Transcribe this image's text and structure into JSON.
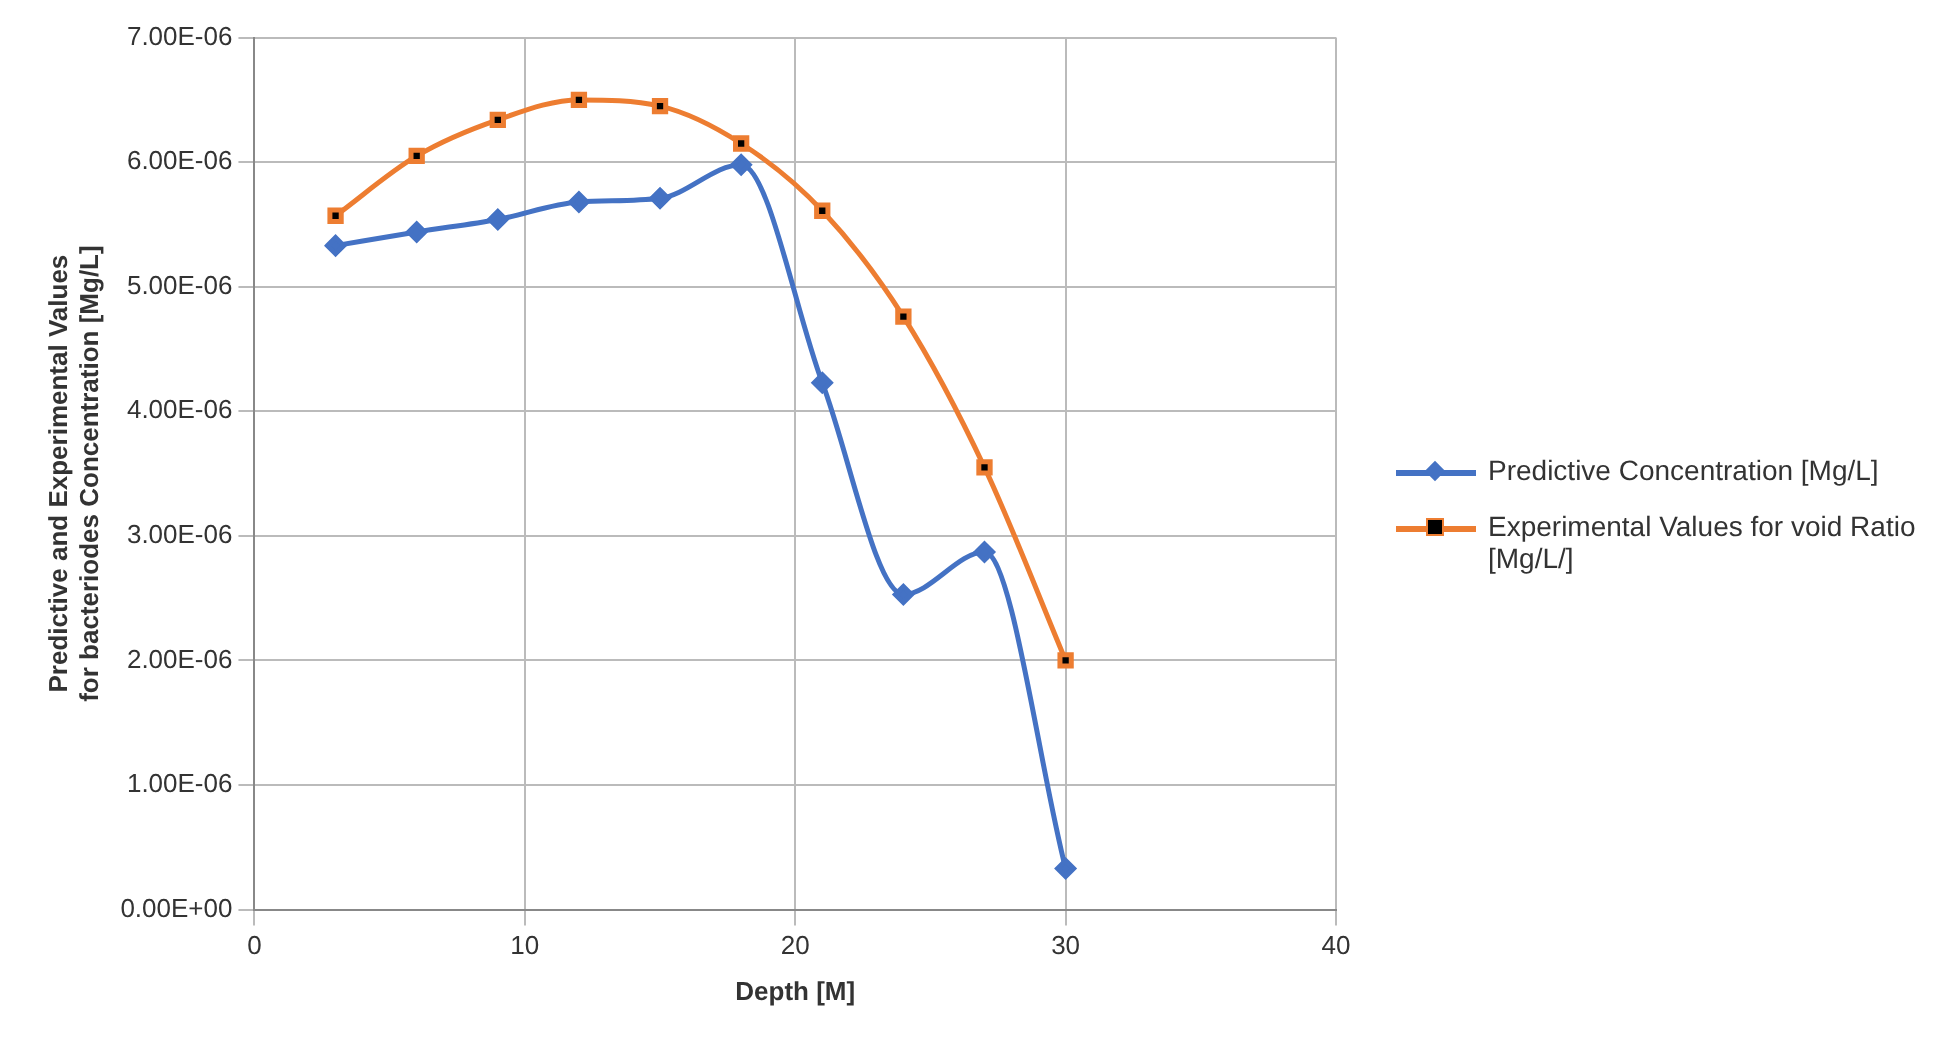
{
  "chart_data": {
    "type": "line",
    "xlabel": "Depth [M]",
    "ylabel": "Predictive and Experimental Values for bacteriodes Concentration [Mg/L]",
    "x": [
      3,
      6,
      9,
      12,
      15,
      18,
      21,
      24,
      27,
      30
    ],
    "series": [
      {
        "name": "Predictive Concentration [Mg/L]",
        "color": "#4472c4",
        "marker": "diamond",
        "values": [
          5.33e-06,
          5.44e-06,
          5.54e-06,
          5.68e-06,
          5.71e-06,
          5.98e-06,
          4.23e-06,
          2.53e-06,
          2.87e-06,
          3.3e-07
        ]
      },
      {
        "name": "Experimental Values for void Ratio [Mg/L/]",
        "color": "#ed7d31",
        "marker": "square",
        "values": [
          5.57e-06,
          6.05e-06,
          6.34e-06,
          6.5e-06,
          6.45e-06,
          6.15e-06,
          5.61e-06,
          4.76e-06,
          3.55e-06,
          2e-06
        ]
      }
    ],
    "xlim": [
      0,
      40
    ],
    "xticks": [
      0,
      10,
      20,
      30,
      40
    ],
    "ylim": [
      0,
      7e-06
    ],
    "yticks": [
      {
        "value": 0,
        "label": "0.00E+00"
      },
      {
        "value": 1e-06,
        "label": "1.00E-06"
      },
      {
        "value": 2e-06,
        "label": "2.00E-06"
      },
      {
        "value": 3e-06,
        "label": "3.00E-06"
      },
      {
        "value": 4e-06,
        "label": "4.00E-06"
      },
      {
        "value": 5e-06,
        "label": "5.00E-06"
      },
      {
        "value": 6e-06,
        "label": "6.00E-06"
      },
      {
        "value": 7e-06,
        "label": "7.00E-06"
      }
    ],
    "grid": true,
    "legend": "right",
    "line_style": "solid"
  }
}
